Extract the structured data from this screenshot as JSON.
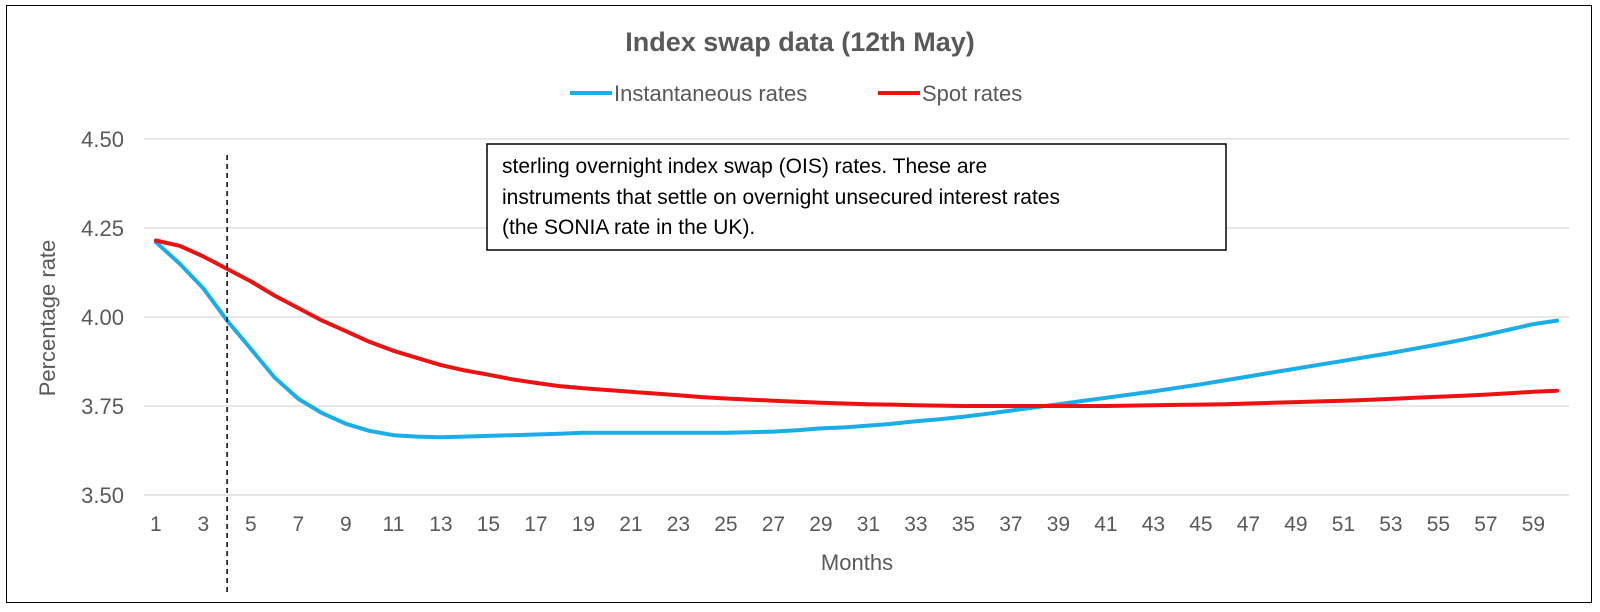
{
  "chart_data": {
    "type": "line",
    "title": "Index swap data (12th May)",
    "xlabel": "Months",
    "ylabel": "Percentage rate",
    "ylim": [
      3.5,
      4.5
    ],
    "yticks": [
      "3.50",
      "3.75",
      "4.00",
      "4.25",
      "4.50"
    ],
    "grid": true,
    "legend_position": "top",
    "xtick_labels": [
      "1",
      "3",
      "5",
      "7",
      "9",
      "11",
      "13",
      "15",
      "17",
      "19",
      "21",
      "23",
      "25",
      "27",
      "29",
      "31",
      "33",
      "35",
      "37",
      "39",
      "41",
      "43",
      "45",
      "47",
      "49",
      "51",
      "53",
      "55",
      "57",
      "59"
    ],
    "x": [
      1,
      2,
      3,
      4,
      5,
      6,
      7,
      8,
      9,
      10,
      11,
      12,
      13,
      14,
      15,
      16,
      17,
      18,
      19,
      20,
      21,
      22,
      23,
      24,
      25,
      26,
      27,
      28,
      29,
      30,
      31,
      32,
      33,
      34,
      35,
      36,
      37,
      38,
      39,
      40,
      41,
      42,
      43,
      44,
      45,
      46,
      47,
      48,
      49,
      50,
      51,
      52,
      53,
      54,
      55,
      56,
      57,
      58,
      59,
      60
    ],
    "series": [
      {
        "name": "Instantaneous rates",
        "color": "#1aade8",
        "values": [
          4.21,
          4.15,
          4.08,
          3.99,
          3.91,
          3.83,
          3.77,
          3.73,
          3.7,
          3.68,
          3.668,
          3.664,
          3.662,
          3.664,
          3.666,
          3.668,
          3.67,
          3.672,
          3.675,
          3.675,
          3.675,
          3.675,
          3.675,
          3.675,
          3.675,
          3.676,
          3.678,
          3.682,
          3.687,
          3.69,
          3.695,
          3.7,
          3.707,
          3.713,
          3.72,
          3.728,
          3.737,
          3.746,
          3.755,
          3.764,
          3.773,
          3.782,
          3.791,
          3.801,
          3.811,
          3.822,
          3.833,
          3.844,
          3.855,
          3.866,
          3.877,
          3.888,
          3.899,
          3.911,
          3.923,
          3.936,
          3.95,
          3.965,
          3.98,
          3.99
        ]
      },
      {
        "name": "Spot rates",
        "color": "#ee1111",
        "values": [
          4.215,
          4.2,
          4.17,
          4.135,
          4.1,
          4.06,
          4.025,
          3.99,
          3.96,
          3.93,
          3.905,
          3.885,
          3.865,
          3.85,
          3.838,
          3.825,
          3.815,
          3.806,
          3.8,
          3.795,
          3.79,
          3.785,
          3.78,
          3.775,
          3.771,
          3.768,
          3.765,
          3.762,
          3.759,
          3.757,
          3.755,
          3.754,
          3.752,
          3.751,
          3.75,
          3.75,
          3.75,
          3.75,
          3.75,
          3.75,
          3.75,
          3.751,
          3.752,
          3.753,
          3.754,
          3.755,
          3.757,
          3.759,
          3.761,
          3.763,
          3.765,
          3.767,
          3.77,
          3.773,
          3.776,
          3.779,
          3.782,
          3.786,
          3.79,
          3.793
        ]
      }
    ],
    "reference_line": {
      "x": 4,
      "style": "dashed",
      "color": "#000000"
    },
    "annotation": {
      "lines": [
        "sterling overnight index swap (OIS) rates. These are",
        "instruments that settle on overnight unsecured interest rates",
        "(the SONIA rate in the UK)."
      ]
    }
  }
}
